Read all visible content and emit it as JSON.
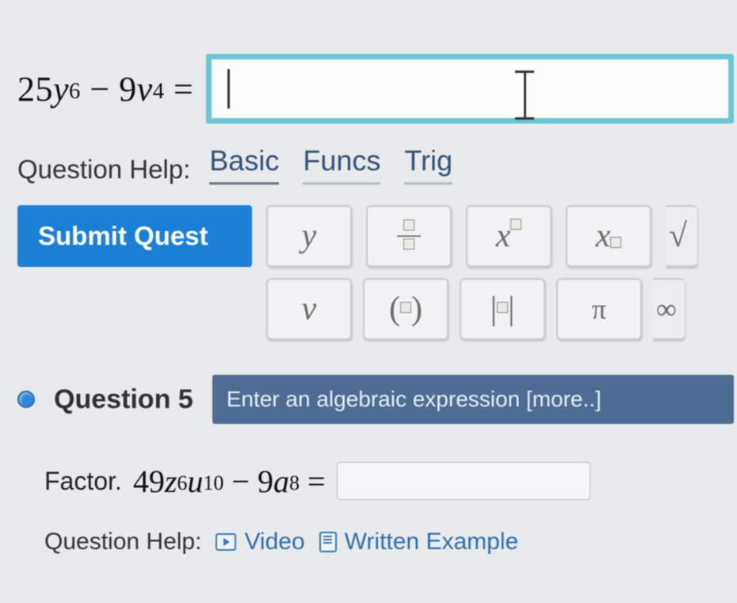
{
  "question4": {
    "expression_html": "25<i>y</i><span class='sup'>6</span> − 9<i>v</i><span class='sup'>4</span> =",
    "answer_value": "",
    "help_label": "Question Help:",
    "input_border_color": "#6cc6d4",
    "input_bg": "#fdfdfd"
  },
  "keypad": {
    "tabs": [
      "Basic",
      "Funcs",
      "Trig"
    ],
    "active_tab": 0,
    "hint": "Enter an algebraic expression [more..]",
    "hint_bg": "#4d6b93",
    "row1": {
      "y": "y",
      "x": "x",
      "xsub": "x",
      "sqrt": "√"
    },
    "row2": {
      "v": "v",
      "parens": "(▫)",
      "abs": "|▫|",
      "pi": "π",
      "inf": "∞"
    },
    "key_bg": "#f0f2f4",
    "key_border": "#c6cdd4"
  },
  "submit": {
    "label": "Submit Quest",
    "bg": "#1b7fd6",
    "color": "#ffffff"
  },
  "question5": {
    "label": "Question 5",
    "bullet_color": "#2f87d6",
    "factor_label": "Factor.",
    "expression_html": "49<i>z</i><span class='sup'>6</span><i>u</i><span class='sup'>10</span> − 9<i>a</i><span class='sup'>8</span> =",
    "answer_value": "",
    "help_label": "Question Help:",
    "video_label": "Video",
    "written_label": "Written Example",
    "link_color": "#2f6fab"
  },
  "page": {
    "bg": "#e8eaec",
    "text": "#222222",
    "accent": "#335175"
  }
}
